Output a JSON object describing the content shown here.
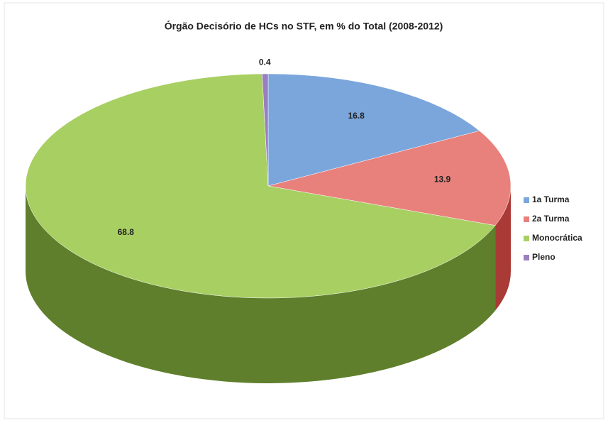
{
  "chart_data": {
    "type": "pie",
    "title": "Órgão Decisório de HCs no STF, em % do Total (2008-2012)",
    "categories": [
      "1a Turma",
      "2a Turma",
      "Monocrática",
      "Pleno"
    ],
    "values": [
      16.8,
      13.9,
      68.8,
      0.4
    ],
    "colors": [
      "#7aa6dc",
      "#e8807c",
      "#a8cf62",
      "#9a7fc0"
    ],
    "side_colors": [
      "#3f6ea8",
      "#a93a36",
      "#5f7f2c",
      "#5f4a85"
    ],
    "legend": "right"
  }
}
